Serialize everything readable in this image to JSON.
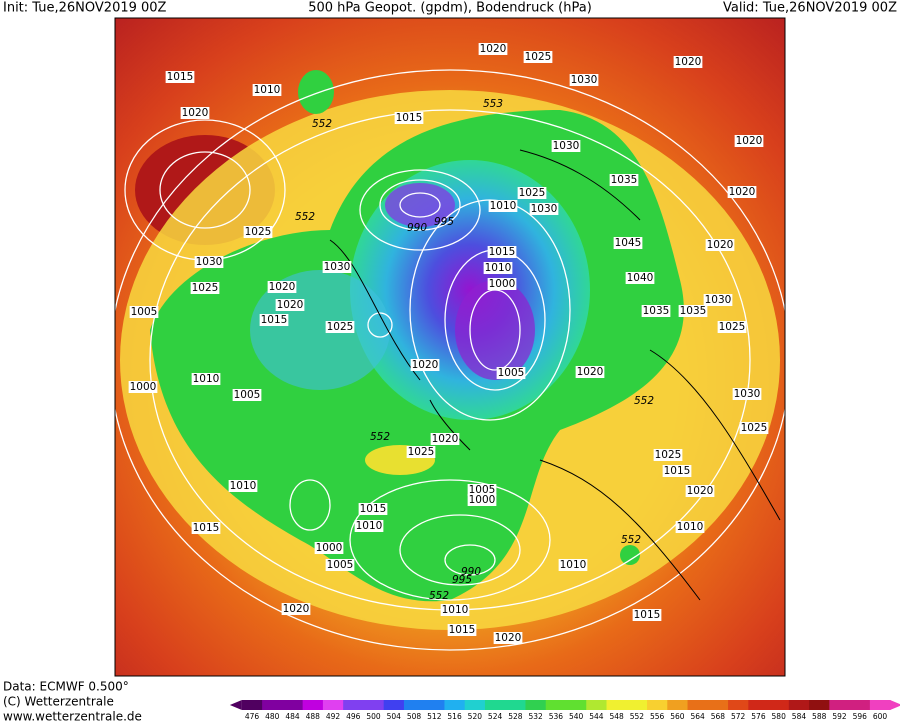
{
  "header": {
    "init": "Init: Tue,26NOV2019 00Z",
    "title": "500 hPa Geopot. (gpdm), Bodendruck (hPa)",
    "valid": "Valid: Tue,26NOV2019 00Z"
  },
  "footer": {
    "data": "Data: ECMWF  0.500°",
    "copyright": "(C) Wetterzentrale",
    "url": "www.wetterzentrale.de"
  },
  "colorbar": {
    "ticks": [
      476,
      480,
      484,
      488,
      492,
      496,
      500,
      504,
      508,
      512,
      516,
      520,
      524,
      528,
      532,
      536,
      540,
      544,
      548,
      552,
      556,
      560,
      564,
      568,
      572,
      576,
      580,
      584,
      588,
      592,
      596,
      600
    ]
  },
  "map_labels": [
    "1015",
    "1010",
    "552",
    "1020",
    "1020",
    "1025",
    "1030",
    "1020",
    "553",
    "1015",
    "1030",
    "1020",
    "1035",
    "1020",
    "552",
    "1025",
    "1030",
    "1030",
    "1025",
    "1020",
    "1020",
    "1005",
    "1015",
    "1025",
    "990",
    "995",
    "1010",
    "1025",
    "1030",
    "1015",
    "1010",
    "1000",
    "1045",
    "1020",
    "1040",
    "1035",
    "1035",
    "1030",
    "1025",
    "1020",
    "1020",
    "1005",
    "1000",
    "1010",
    "1005",
    "552",
    "1030",
    "552",
    "1020",
    "1025",
    "1025",
    "1025",
    "1015",
    "1010",
    "1005",
    "1000",
    "1015",
    "1020",
    "1010",
    "1015",
    "1010",
    "552",
    "1000",
    "1005",
    "990",
    "995",
    "1010",
    "552",
    "1010",
    "1020",
    "1015",
    "1015",
    "1020"
  ]
}
